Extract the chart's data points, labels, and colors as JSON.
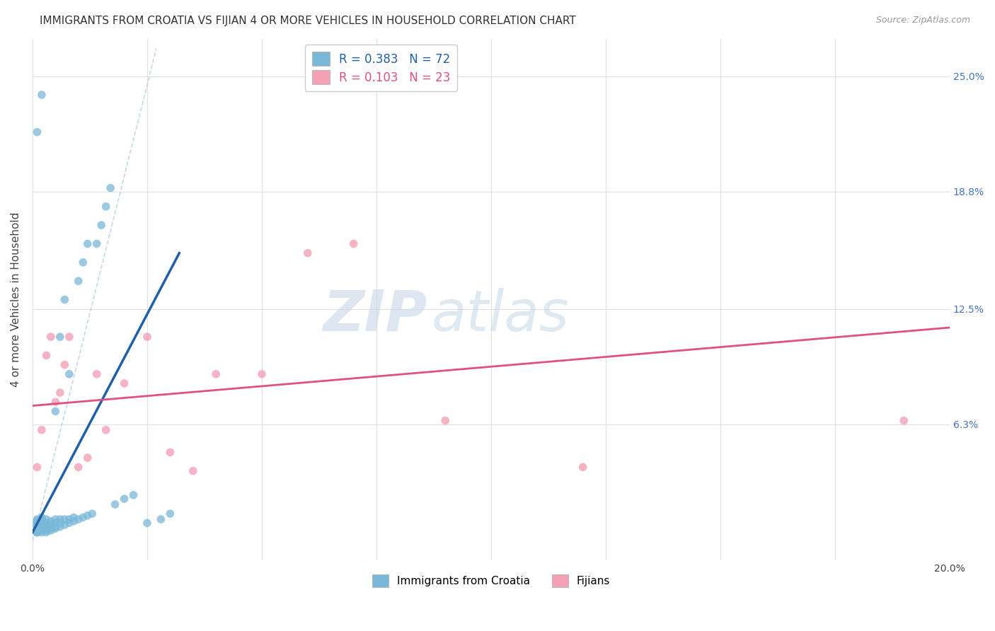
{
  "title": "IMMIGRANTS FROM CROATIA VS FIJIAN 4 OR MORE VEHICLES IN HOUSEHOLD CORRELATION CHART",
  "source": "Source: ZipAtlas.com",
  "ylabel_ticks_labels": [
    "6.3%",
    "12.5%",
    "18.8%",
    "25.0%"
  ],
  "ylabel_ticks_values": [
    0.063,
    0.125,
    0.188,
    0.25
  ],
  "xlim": [
    0.0,
    0.2
  ],
  "ylim": [
    -0.01,
    0.27
  ],
  "ylabel": "4 or more Vehicles in Household",
  "R_croatia": 0.383,
  "N_croatia": 72,
  "R_fijian": 0.103,
  "N_fijian": 23,
  "color_croatia": "#7ab8d9",
  "color_fijian": "#f4a0b5",
  "color_trendline_croatia": "#2060a8",
  "color_trendline_fijian": "#e05080",
  "color_diagonal": "#b8d0e8",
  "watermark_zip": "ZIP",
  "watermark_atlas": "atlas",
  "background_color": "#ffffff",
  "grid_color": "#e0e0e0",
  "croatia_x": [
    0.001,
    0.001,
    0.001,
    0.001,
    0.001,
    0.001,
    0.001,
    0.001,
    0.001,
    0.001,
    0.001,
    0.001,
    0.001,
    0.001,
    0.001,
    0.002,
    0.002,
    0.002,
    0.002,
    0.002,
    0.002,
    0.002,
    0.002,
    0.002,
    0.003,
    0.003,
    0.003,
    0.003,
    0.003,
    0.003,
    0.003,
    0.004,
    0.004,
    0.004,
    0.004,
    0.004,
    0.005,
    0.005,
    0.005,
    0.005,
    0.005,
    0.006,
    0.006,
    0.006,
    0.006,
    0.007,
    0.007,
    0.007,
    0.008,
    0.008,
    0.008,
    0.009,
    0.009,
    0.01,
    0.01,
    0.011,
    0.011,
    0.012,
    0.012,
    0.013,
    0.014,
    0.015,
    0.016,
    0.017,
    0.018,
    0.02,
    0.022,
    0.025,
    0.028,
    0.03,
    0.001,
    0.002
  ],
  "croatia_y": [
    0.005,
    0.005,
    0.005,
    0.007,
    0.007,
    0.008,
    0.008,
    0.009,
    0.009,
    0.01,
    0.01,
    0.01,
    0.011,
    0.011,
    0.012,
    0.005,
    0.006,
    0.007,
    0.008,
    0.009,
    0.01,
    0.011,
    0.012,
    0.013,
    0.005,
    0.006,
    0.007,
    0.008,
    0.009,
    0.01,
    0.012,
    0.006,
    0.007,
    0.008,
    0.01,
    0.011,
    0.007,
    0.008,
    0.01,
    0.012,
    0.07,
    0.008,
    0.01,
    0.012,
    0.11,
    0.009,
    0.012,
    0.13,
    0.01,
    0.012,
    0.09,
    0.011,
    0.013,
    0.012,
    0.14,
    0.013,
    0.15,
    0.014,
    0.16,
    0.015,
    0.16,
    0.17,
    0.18,
    0.19,
    0.02,
    0.023,
    0.025,
    0.01,
    0.012,
    0.015,
    0.22,
    0.24
  ],
  "fijian_x": [
    0.001,
    0.002,
    0.003,
    0.004,
    0.005,
    0.006,
    0.007,
    0.008,
    0.01,
    0.012,
    0.014,
    0.016,
    0.02,
    0.025,
    0.03,
    0.035,
    0.04,
    0.05,
    0.06,
    0.07,
    0.09,
    0.12,
    0.19
  ],
  "fijian_y": [
    0.04,
    0.06,
    0.1,
    0.11,
    0.075,
    0.08,
    0.095,
    0.11,
    0.04,
    0.045,
    0.09,
    0.06,
    0.085,
    0.11,
    0.048,
    0.038,
    0.09,
    0.09,
    0.155,
    0.16,
    0.065,
    0.04,
    0.065
  ],
  "trendline_croatia_x0": 0.0,
  "trendline_croatia_x1": 0.032,
  "trendline_croatia_y0": 0.005,
  "trendline_croatia_y1": 0.155,
  "trendline_fijian_x0": 0.0,
  "trendline_fijian_x1": 0.2,
  "trendline_fijian_y0": 0.073,
  "trendline_fijian_y1": 0.115
}
